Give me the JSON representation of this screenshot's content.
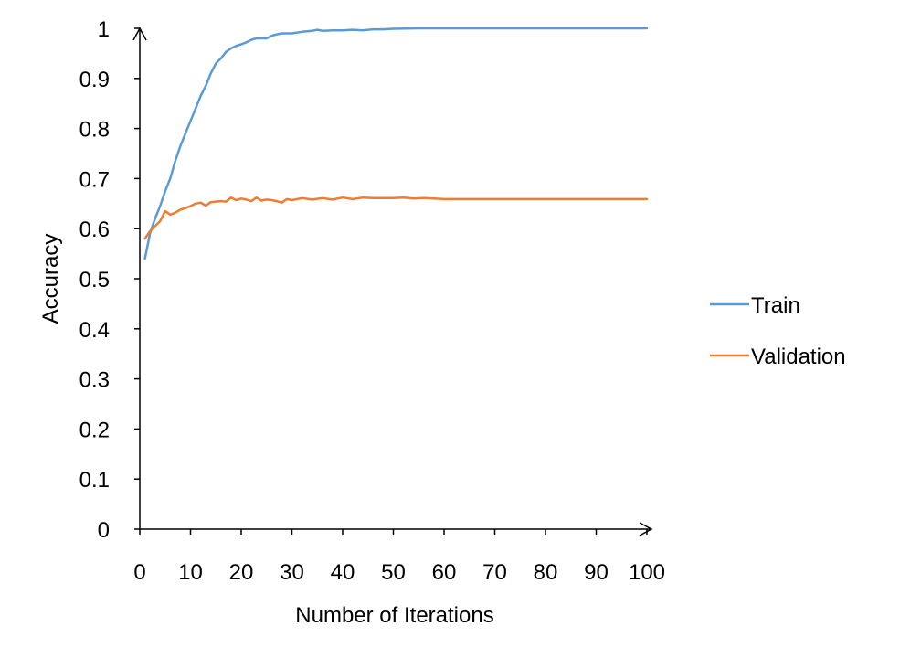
{
  "chart_data": {
    "type": "line",
    "xlabel": "Number of Iterations",
    "ylabel": "Accuracy",
    "xlim": [
      0,
      100
    ],
    "ylim": [
      0,
      1
    ],
    "x_ticks": [
      "0",
      "10",
      "20",
      "30",
      "40",
      "50",
      "60",
      "70",
      "80",
      "90",
      "100"
    ],
    "y_ticks": [
      "0",
      "0.1",
      "0.2",
      "0.3",
      "0.4",
      "0.5",
      "0.6",
      "0.7",
      "0.8",
      "0.9",
      "1"
    ],
    "grid": false,
    "legend_position": "right",
    "series": [
      {
        "name": "Train",
        "color": "#5b9bd5",
        "x": [
          1,
          2,
          3,
          4,
          5,
          6,
          7,
          8,
          9,
          10,
          11,
          12,
          13,
          14,
          15,
          16,
          17,
          18,
          19,
          20,
          21,
          22,
          23,
          24,
          25,
          26,
          27,
          28,
          29,
          30,
          32,
          34,
          35,
          36,
          38,
          40,
          42,
          44,
          46,
          48,
          50,
          55,
          60,
          65,
          70,
          75,
          80,
          85,
          90,
          95,
          100
        ],
        "y": [
          0.54,
          0.59,
          0.62,
          0.645,
          0.675,
          0.7,
          0.735,
          0.765,
          0.79,
          0.815,
          0.84,
          0.865,
          0.885,
          0.91,
          0.93,
          0.94,
          0.953,
          0.96,
          0.965,
          0.968,
          0.972,
          0.977,
          0.98,
          0.98,
          0.98,
          0.985,
          0.988,
          0.99,
          0.99,
          0.99,
          0.993,
          0.995,
          0.997,
          0.995,
          0.996,
          0.996,
          0.997,
          0.996,
          0.998,
          0.998,
          0.999,
          1.0,
          1.0,
          1.0,
          1.0,
          1.0,
          1.0,
          1.0,
          1.0,
          1.0,
          1.0
        ]
      },
      {
        "name": "Validation",
        "color": "#ed7d31",
        "x": [
          1,
          2,
          3,
          4,
          5,
          6,
          7,
          8,
          9,
          10,
          11,
          12,
          13,
          14,
          15,
          16,
          17,
          18,
          19,
          20,
          21,
          22,
          23,
          24,
          25,
          26,
          27,
          28,
          29,
          30,
          32,
          34,
          36,
          38,
          40,
          42,
          44,
          46,
          48,
          50,
          52,
          54,
          56,
          58,
          60,
          65,
          70,
          75,
          80,
          85,
          90,
          95,
          100
        ],
        "y": [
          0.58,
          0.595,
          0.605,
          0.615,
          0.635,
          0.628,
          0.632,
          0.638,
          0.641,
          0.645,
          0.65,
          0.652,
          0.646,
          0.653,
          0.654,
          0.655,
          0.654,
          0.662,
          0.657,
          0.66,
          0.658,
          0.655,
          0.662,
          0.656,
          0.658,
          0.657,
          0.655,
          0.652,
          0.659,
          0.657,
          0.661,
          0.658,
          0.661,
          0.658,
          0.662,
          0.659,
          0.662,
          0.661,
          0.661,
          0.661,
          0.662,
          0.66,
          0.661,
          0.66,
          0.659,
          0.659,
          0.659,
          0.659,
          0.659,
          0.659,
          0.659,
          0.659,
          0.659
        ]
      }
    ]
  }
}
